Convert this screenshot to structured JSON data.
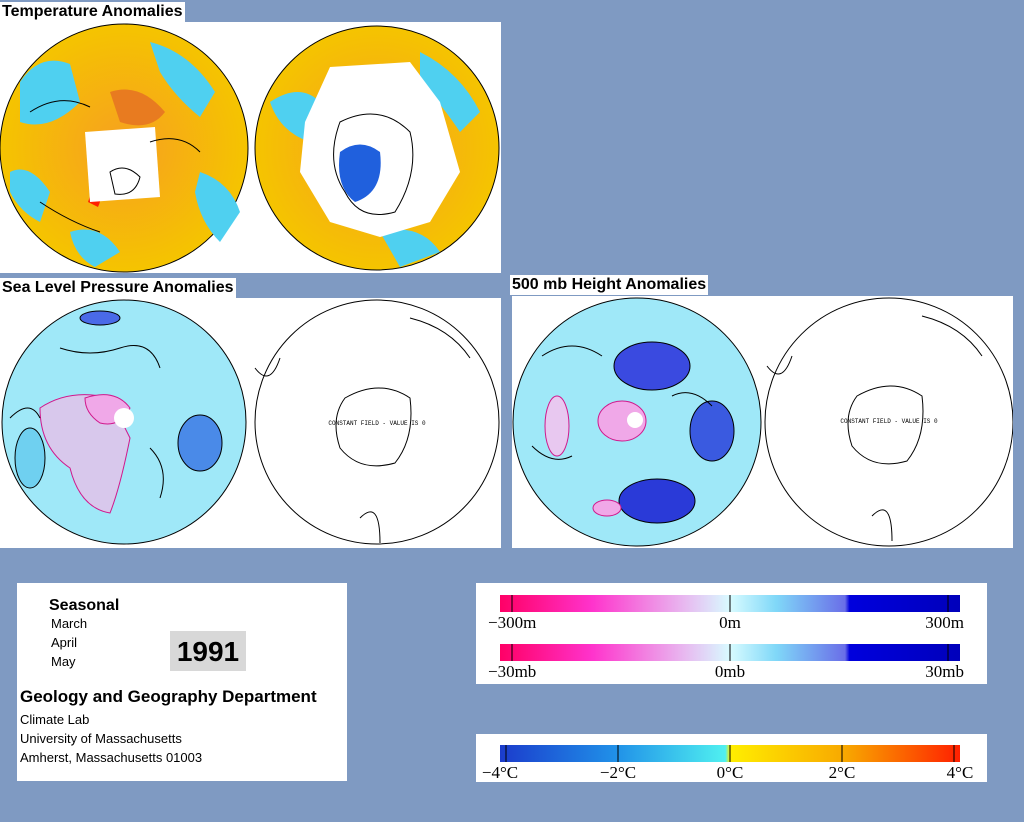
{
  "titles": {
    "temperature": "Temperature Anomalies",
    "slp": "Sea Level Pressure Anomalies",
    "height500": "500 mb Height Anomalies"
  },
  "map_annotations": {
    "slp_south": "CONSTANT FIELD - VALUE IS 0",
    "height_south": "CONSTANT FIELD - VALUE IS 0"
  },
  "info": {
    "period": "Seasonal",
    "months": [
      "March",
      "April",
      "May"
    ],
    "year": "1991",
    "department": "Geology and Geography Department",
    "address": [
      "Climate Lab",
      "University of Massachusetts",
      "Amherst, Massachusetts 01003"
    ]
  },
  "legends": {
    "height": {
      "labels": [
        "−300m",
        "0m",
        "300m"
      ]
    },
    "pressure": {
      "labels": [
        "−30mb",
        "0mb",
        "30mb"
      ]
    },
    "temperature": {
      "labels": [
        "−4°C",
        "−2°C",
        "0°C",
        "2°C",
        "4°C"
      ]
    }
  },
  "colors": {
    "background": "#7f9ac2",
    "warm_anomaly": "#f5b400",
    "cold_anomaly": "#4fd0f0",
    "high_positive": "#1b1bc8",
    "negative_pink": "#f0189c"
  }
}
